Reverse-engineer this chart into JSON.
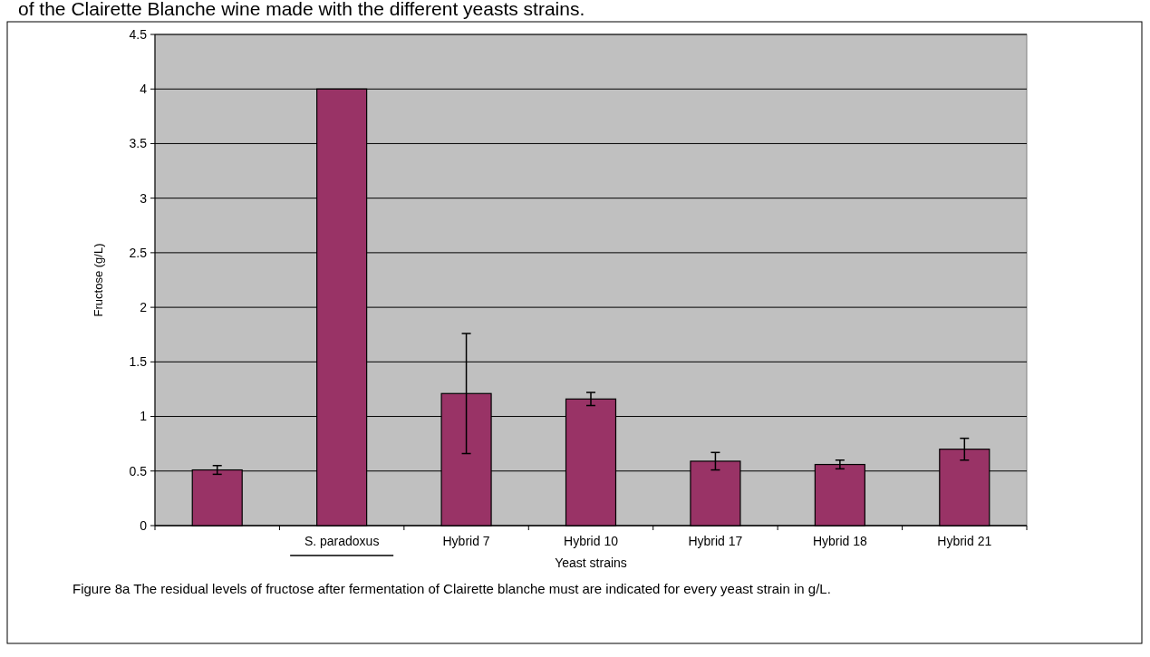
{
  "chart_data": {
    "type": "bar",
    "title": "of the Clairette Blanche wine made with the different yeasts strains.",
    "categories": [
      null,
      "S. paradoxus",
      "Hybrid 7",
      "Hybrid 10",
      "Hybrid 17",
      "Hybrid 18",
      "Hybrid 21"
    ],
    "values": [
      0.51,
      4.0,
      1.21,
      1.16,
      0.59,
      0.56,
      0.7
    ],
    "errors": [
      [
        0.47,
        0.55
      ],
      null,
      [
        0.66,
        1.76
      ],
      [
        1.1,
        1.22
      ],
      [
        0.51,
        0.67
      ],
      [
        0.52,
        0.6
      ],
      [
        0.6,
        0.8
      ]
    ],
    "color": "#993366",
    "xlabel": "Yeast strains",
    "ylabel": "Fructose (g/L)",
    "ylim": [
      0,
      4.5
    ],
    "yticks": [
      0,
      0.5,
      1,
      1.5,
      2,
      2.5,
      3,
      3.5,
      4,
      4.5
    ],
    "grid": "y",
    "annotations": [
      "Figure 8a The residual levels of fructose after fermentation of Clairette blanche must are indicated for every yeast strain in g/L."
    ]
  }
}
